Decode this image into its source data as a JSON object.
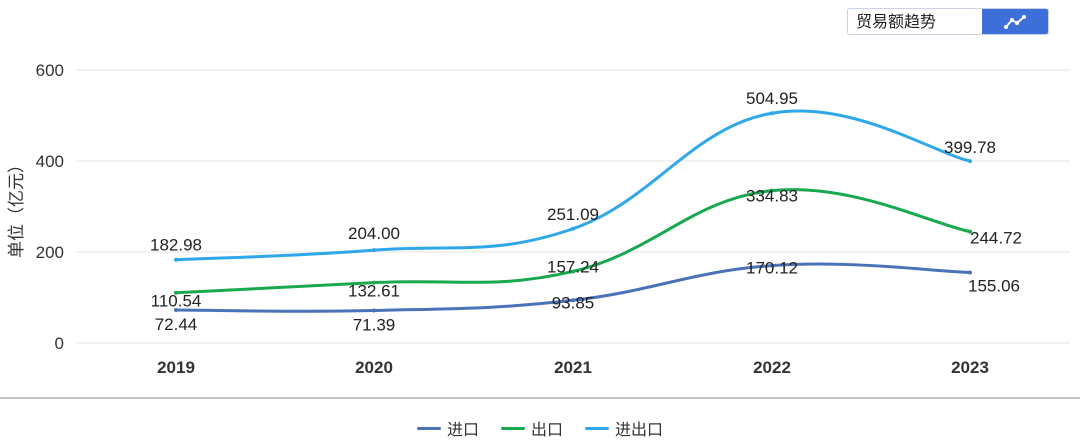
{
  "control": {
    "label": "贸易额趋势",
    "button_icon": "line-chart-icon",
    "accent": "#3e6fd8"
  },
  "chart_data": {
    "type": "line",
    "categories": [
      "2019",
      "2020",
      "2021",
      "2022",
      "2023"
    ],
    "ylabel": "单位（亿元）",
    "ylim": [
      0,
      600
    ],
    "yticks": [
      0,
      200,
      400,
      600
    ],
    "grid": true,
    "legend_position": "bottom",
    "series": [
      {
        "name": "进口",
        "color": "#4a72b8",
        "values": [
          72.44,
          71.39,
          93.85,
          170.12,
          155.06
        ],
        "labels": [
          "72.44",
          "71.39",
          "93.85",
          "170.12",
          "155.06"
        ]
      },
      {
        "name": "出口",
        "color": "#18a84e",
        "values": [
          110.54,
          132.61,
          157.24,
          334.83,
          244.72
        ],
        "labels": [
          "110.54",
          "132.61",
          "157.24",
          "334.83",
          "244.72"
        ]
      },
      {
        "name": "进出口",
        "color": "#2ea8ea",
        "values": [
          182.98,
          204.0,
          251.09,
          504.95,
          399.78
        ],
        "labels": [
          "182.98",
          "204.00",
          "251.09",
          "504.95",
          "399.78"
        ]
      }
    ]
  }
}
